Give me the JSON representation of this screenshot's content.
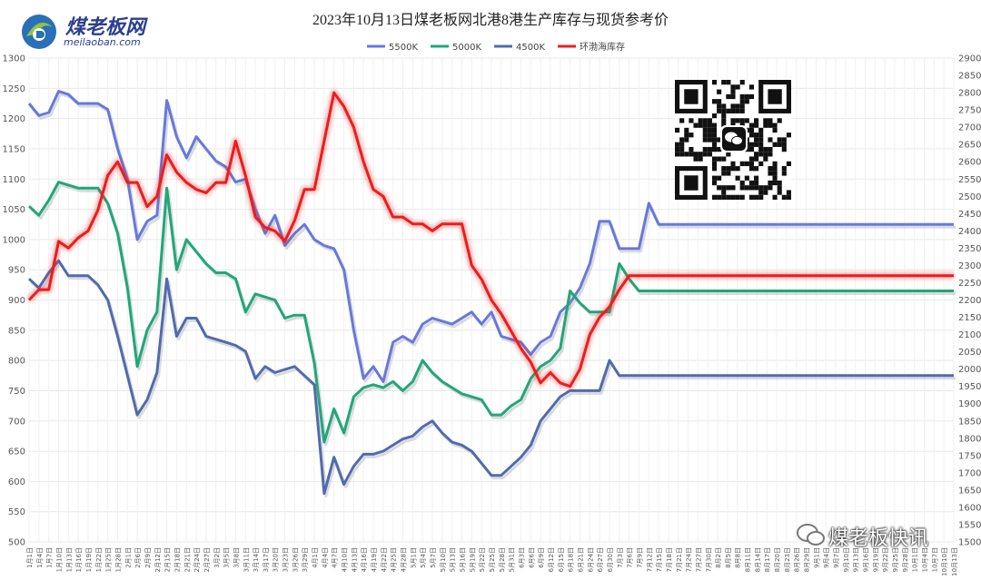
{
  "logo": {
    "name": "煤老板网",
    "url_text": "meilaoban.com"
  },
  "watermark": {
    "text": "煤老板快讯"
  },
  "qr": {
    "icon": "wechat-icon"
  },
  "chart_data": {
    "type": "line",
    "title": "2023年10月13日煤老板网北港8港生产库存与现货参考价",
    "legend_position": "top-center",
    "grid": true,
    "left_axis": {
      "min": 500,
      "max": 1300,
      "step": 50
    },
    "right_axis": {
      "min": 1500,
      "max": 2900,
      "step": 50
    },
    "x": [
      "1月1日",
      "1月4日",
      "1月7日",
      "1月10日",
      "1月13日",
      "1月16日",
      "1月19日",
      "1月22日",
      "1月25日",
      "1月28日",
      "2月1日",
      "2月6日",
      "2月9日",
      "2月12日",
      "2月15日",
      "2月18日",
      "2月21日",
      "2月24日",
      "2月27日",
      "3月2日",
      "3月5日",
      "3月8日",
      "3月11日",
      "3月14日",
      "3月17日",
      "3月20日",
      "3月23日",
      "3月26日",
      "3月29日",
      "4月1日",
      "4月4日",
      "4月7日",
      "4月10日",
      "4月13日",
      "4月16日",
      "4月19日",
      "4月22日",
      "4月25日",
      "4月28日",
      "5月1日",
      "5月4日",
      "5月7日",
      "5月10日",
      "5月13日",
      "5月16日",
      "5月19日",
      "5月22日",
      "5月25日",
      "5月28日",
      "5月31日",
      "6月3日",
      "6月6日",
      "6月9日",
      "6月12日",
      "6月15日",
      "6月18日",
      "6月21日",
      "6月24日",
      "6月27日",
      "6月30日",
      "7月3日",
      "7月6日",
      "7月9日",
      "7月12日",
      "7月15日",
      "7月18日",
      "7月21日",
      "7月24日",
      "7月27日",
      "7月30日",
      "8月2日",
      "8月5日",
      "8月8日",
      "8月11日",
      "8月14日",
      "8月17日",
      "8月20日",
      "8月23日",
      "8月26日",
      "8月29日",
      "9月1日",
      "9月4日",
      "9月7日",
      "9月10日",
      "9月13日",
      "9月16日",
      "9月19日",
      "9月22日",
      "9月25日",
      "9月28日",
      "10月1日",
      "10月4日",
      "10月7日",
      "10月10日",
      "10月13日"
    ],
    "series": [
      {
        "name": "5500K",
        "axis": "left",
        "color": "#6678e0",
        "values": [
          1225,
          1205,
          1210,
          1245,
          1240,
          1225,
          1225,
          1225,
          1215,
          1150,
          1100,
          1000,
          1030,
          1040,
          1230,
          1170,
          1135,
          1170,
          1150,
          1130,
          1120,
          1095,
          1100,
          1050,
          1010,
          1040,
          990,
          1010,
          1025,
          1000,
          990,
          985,
          950,
          850,
          770,
          790,
          765,
          830,
          840,
          830,
          860,
          870,
          865,
          860,
          870,
          880,
          860,
          880,
          840,
          835,
          830,
          810,
          830,
          840,
          880,
          895,
          920,
          960,
          1030,
          1030,
          985,
          985,
          985,
          1060,
          1025,
          1025,
          1025,
          1025,
          1025,
          1025,
          1025,
          1025,
          1025,
          1025,
          1025,
          1025,
          1025,
          1025,
          1025,
          1025,
          1025,
          1025,
          1025,
          1025,
          1025,
          1025,
          1025,
          1025,
          1025,
          1025,
          1025,
          1025,
          1025,
          1025,
          1025
        ]
      },
      {
        "name": "5000K",
        "axis": "left",
        "color": "#1fa77a",
        "values": [
          1055,
          1040,
          1065,
          1095,
          1090,
          1085,
          1085,
          1085,
          1060,
          1010,
          920,
          790,
          850,
          880,
          1085,
          950,
          1000,
          980,
          960,
          945,
          945,
          935,
          880,
          910,
          905,
          900,
          870,
          875,
          875,
          795,
          665,
          720,
          680,
          740,
          755,
          760,
          755,
          765,
          750,
          765,
          800,
          780,
          765,
          755,
          745,
          740,
          735,
          710,
          710,
          725,
          735,
          770,
          790,
          800,
          820,
          915,
          895,
          880,
          880,
          880,
          960,
          935,
          915,
          915,
          915,
          915,
          915,
          915,
          915,
          915,
          915,
          915,
          915,
          915,
          915,
          915,
          915,
          915,
          915,
          915,
          915,
          915,
          915,
          915,
          915,
          915,
          915,
          915,
          915,
          915,
          915,
          915,
          915,
          915,
          915
        ]
      },
      {
        "name": "4500K",
        "axis": "left",
        "color": "#4f6bb0",
        "values": [
          935,
          920,
          945,
          965,
          940,
          940,
          940,
          925,
          900,
          840,
          775,
          710,
          735,
          780,
          935,
          840,
          870,
          870,
          840,
          835,
          830,
          825,
          815,
          770,
          790,
          780,
          785,
          790,
          775,
          760,
          580,
          640,
          595,
          625,
          645,
          645,
          650,
          660,
          670,
          675,
          690,
          700,
          680,
          665,
          660,
          650,
          630,
          610,
          610,
          625,
          640,
          660,
          700,
          720,
          740,
          750,
          750,
          750,
          750,
          800,
          775,
          775,
          775,
          775,
          775,
          775,
          775,
          775,
          775,
          775,
          775,
          775,
          775,
          775,
          775,
          775,
          775,
          775,
          775,
          775,
          775,
          775,
          775,
          775,
          775,
          775,
          775,
          775,
          775,
          775,
          775,
          775,
          775,
          775,
          775
        ]
      },
      {
        "name": "环渤海库存",
        "axis": "right",
        "color": "#ee1c1c",
        "values": [
          2200,
          2230,
          2230,
          2370,
          2350,
          2380,
          2400,
          2460,
          2560,
          2600,
          2540,
          2540,
          2470,
          2500,
          2620,
          2570,
          2540,
          2520,
          2510,
          2540,
          2540,
          2660,
          2560,
          2440,
          2410,
          2400,
          2370,
          2430,
          2520,
          2520,
          2660,
          2800,
          2760,
          2700,
          2600,
          2520,
          2500,
          2440,
          2440,
          2420,
          2420,
          2400,
          2420,
          2420,
          2420,
          2300,
          2260,
          2200,
          2160,
          2110,
          2060,
          2020,
          1960,
          1990,
          1960,
          1950,
          2000,
          2100,
          2150,
          2180,
          2230,
          2270,
          2270,
          2270,
          2270,
          2270,
          2270,
          2270,
          2270,
          2270,
          2270,
          2270,
          2270,
          2270,
          2270,
          2270,
          2270,
          2270,
          2270,
          2270,
          2270,
          2270,
          2270,
          2270,
          2270,
          2270,
          2270,
          2270,
          2270,
          2270,
          2270,
          2270,
          2270,
          2270,
          2270
        ]
      }
    ]
  }
}
